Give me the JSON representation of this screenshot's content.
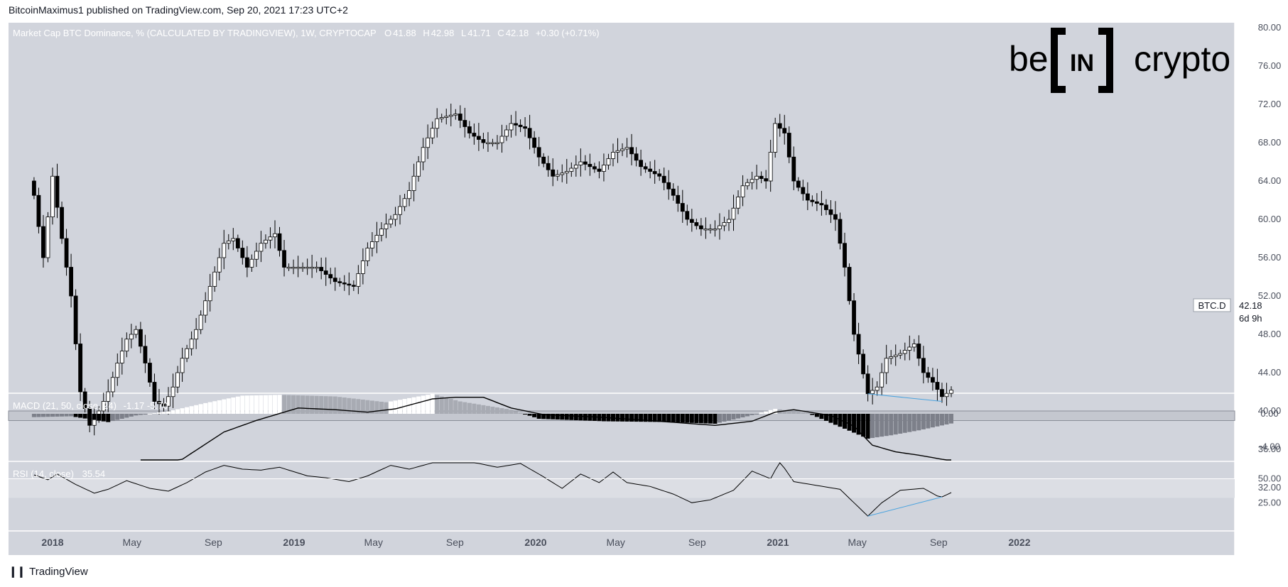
{
  "header": {
    "publish_text": "BitcoinMaximus1 published on TradingView.com, Sep 20, 2021 17:23 UTC+2"
  },
  "footer": {
    "brand": "TradingView"
  },
  "watermark": {
    "text_left": "be",
    "text_mid": "IN",
    "text_right": "crypto"
  },
  "colors": {
    "panel_bg": "#d1d4dc",
    "rsi_band": "#dcdee4",
    "bull": "#ffffff",
    "bear": "#000000",
    "divergence": "#4aa3df"
  },
  "chart_data": [
    {
      "type": "candlestick",
      "title": "Market Cap BTC Dominance, % (CALCULATED BY TRADINGVIEW), 1W, CRYPTOCAP",
      "ohlc_labels": {
        "o_key": "O",
        "o": "41.88",
        "h_key": "H",
        "h": "42.98",
        "l_key": "L",
        "l": "41.71",
        "c_key": "C",
        "c": "42.18",
        "change": "+0.30 (+0.71%)"
      },
      "symbol_label": "BTC.D",
      "last_value": "42.18",
      "countdown": "6d 9h",
      "ylim": [
        30.5,
        80.5
      ],
      "y_ticks": [
        "80.00",
        "76.00",
        "72.00",
        "68.00",
        "64.00",
        "60.00",
        "56.00",
        "52.00",
        "48.00",
        "44.00",
        "40.00",
        "36.00",
        "32.00"
      ],
      "support_zone": [
        39.0,
        40.0
      ],
      "divergence_line": {
        "from": [
          "2021-05-17",
          41.8
        ],
        "to": [
          "2021-09-06",
          41.0
        ]
      },
      "x_labels": [
        "2018",
        "May",
        "Sep",
        "2019",
        "May",
        "Sep",
        "2020",
        "May",
        "Sep",
        "2021",
        "May",
        "Sep",
        "2022"
      ],
      "anchors": [
        [
          "2017-12-04",
          62.5
        ],
        [
          "2017-12-18",
          56.0
        ],
        [
          "2018-01-01",
          64.5
        ],
        [
          "2018-01-15",
          58.0
        ],
        [
          "2018-01-29",
          52.0
        ],
        [
          "2018-02-12",
          42.0
        ],
        [
          "2018-02-26",
          38.5
        ],
        [
          "2018-03-12",
          40.0
        ],
        [
          "2018-03-26",
          42.0
        ],
        [
          "2018-04-09",
          45.0
        ],
        [
          "2018-04-23",
          47.5
        ],
        [
          "2018-05-07",
          48.5
        ],
        [
          "2018-05-21",
          45.0
        ],
        [
          "2018-06-04",
          41.0
        ],
        [
          "2018-06-18",
          40.5
        ],
        [
          "2018-07-02",
          42.5
        ],
        [
          "2018-07-16",
          45.5
        ],
        [
          "2018-08-06",
          48.5
        ],
        [
          "2018-08-27",
          53.0
        ],
        [
          "2018-09-17",
          57.5
        ],
        [
          "2018-10-01",
          58.0
        ],
        [
          "2018-10-22",
          55.0
        ],
        [
          "2018-11-12",
          57.5
        ],
        [
          "2018-12-03",
          58.5
        ],
        [
          "2018-12-17",
          55.0
        ],
        [
          "2019-01-07",
          55.0
        ],
        [
          "2019-02-04",
          55.0
        ],
        [
          "2019-03-04",
          53.5
        ],
        [
          "2019-04-01",
          53.0
        ],
        [
          "2019-04-22",
          57.0
        ],
        [
          "2019-05-13",
          59.0
        ],
        [
          "2019-06-03",
          60.5
        ],
        [
          "2019-06-24",
          63.0
        ],
        [
          "2019-07-15",
          67.5
        ],
        [
          "2019-08-05",
          70.5
        ],
        [
          "2019-09-02",
          71.0
        ],
        [
          "2019-09-23",
          69.0
        ],
        [
          "2019-10-14",
          68.0
        ],
        [
          "2019-11-04",
          68.0
        ],
        [
          "2019-11-25",
          70.0
        ],
        [
          "2019-12-16",
          69.5
        ],
        [
          "2020-01-06",
          66.5
        ],
        [
          "2020-01-27",
          64.5
        ],
        [
          "2020-02-17",
          65.0
        ],
        [
          "2020-03-09",
          66.0
        ],
        [
          "2020-04-06",
          65.0
        ],
        [
          "2020-04-27",
          67.0
        ],
        [
          "2020-05-18",
          67.5
        ],
        [
          "2020-06-08",
          65.5
        ],
        [
          "2020-07-06",
          64.5
        ],
        [
          "2020-07-27",
          62.5
        ],
        [
          "2020-08-17",
          60.0
        ],
        [
          "2020-09-07",
          59.0
        ],
        [
          "2020-09-28",
          59.0
        ],
        [
          "2020-10-19",
          60.0
        ],
        [
          "2020-11-09",
          63.5
        ],
        [
          "2020-11-30",
          64.5
        ],
        [
          "2020-12-14",
          64.0
        ],
        [
          "2020-12-28",
          70.0
        ],
        [
          "2021-01-11",
          69.0
        ],
        [
          "2021-01-25",
          64.0
        ],
        [
          "2021-02-15",
          62.0
        ],
        [
          "2021-03-08",
          61.5
        ],
        [
          "2021-03-29",
          60.0
        ],
        [
          "2021-04-12",
          55.0
        ],
        [
          "2021-04-26",
          48.0
        ],
        [
          "2021-05-17",
          41.8
        ],
        [
          "2021-05-31",
          42.5
        ],
        [
          "2021-06-14",
          45.5
        ],
        [
          "2021-07-05",
          46.0
        ],
        [
          "2021-07-26",
          47.0
        ],
        [
          "2021-08-09",
          44.0
        ],
        [
          "2021-08-23",
          43.0
        ],
        [
          "2021-09-06",
          41.5
        ],
        [
          "2021-09-20",
          42.18
        ]
      ]
    },
    {
      "type": "histogram+line",
      "title": "MACD (21, 50, close, 24)",
      "title_label": "MACD (21, 50, close, 24)",
      "values_label": "-1.17  -5.70",
      "y_ticks": [
        "0.00",
        "-4.00"
      ],
      "ylim": [
        -7.5,
        2.0
      ],
      "histogram_anchors": [
        [
          "2017-12-04",
          -0.4
        ],
        [
          "2018-01-29",
          -0.3
        ],
        [
          "2018-03-26",
          -1.0
        ],
        [
          "2018-05-07",
          -0.2
        ],
        [
          "2018-06-25",
          0.3
        ],
        [
          "2018-08-20",
          1.3
        ],
        [
          "2018-10-15",
          2.2
        ],
        [
          "2018-12-10",
          2.3
        ],
        [
          "2019-03-04",
          2.1
        ],
        [
          "2019-05-20",
          1.4
        ],
        [
          "2019-07-29",
          2.4
        ],
        [
          "2019-09-09",
          1.5
        ],
        [
          "2019-11-25",
          0.5
        ],
        [
          "2020-01-06",
          -0.6
        ],
        [
          "2020-04-13",
          -0.9
        ],
        [
          "2020-07-20",
          -1.0
        ],
        [
          "2020-09-28",
          -1.2
        ],
        [
          "2020-11-16",
          -0.3
        ],
        [
          "2020-12-28",
          0.6
        ],
        [
          "2021-02-15",
          0.1
        ],
        [
          "2021-04-12",
          -1.8
        ],
        [
          "2021-05-17",
          -3.0
        ],
        [
          "2021-06-21",
          -2.6
        ],
        [
          "2021-08-02",
          -2.0
        ],
        [
          "2021-09-20",
          -1.17
        ]
      ],
      "line_anchors": [
        [
          "2018-05-14",
          -7.5
        ],
        [
          "2018-07-16",
          -5.5
        ],
        [
          "2018-09-17",
          -2.2
        ],
        [
          "2018-11-05",
          -0.8
        ],
        [
          "2019-01-07",
          0.7
        ],
        [
          "2019-03-04",
          0.5
        ],
        [
          "2019-04-22",
          0.2
        ],
        [
          "2019-06-03",
          0.6
        ],
        [
          "2019-07-29",
          1.8
        ],
        [
          "2019-09-02",
          2.0
        ],
        [
          "2019-10-14",
          2.0
        ],
        [
          "2019-11-25",
          0.7
        ],
        [
          "2020-01-13",
          -0.1
        ],
        [
          "2020-04-06",
          -0.4
        ],
        [
          "2020-07-06",
          -0.9
        ],
        [
          "2020-09-28",
          -1.4
        ],
        [
          "2020-11-23",
          -0.9
        ],
        [
          "2020-12-28",
          0.2
        ],
        [
          "2021-01-25",
          0.5
        ],
        [
          "2021-03-22",
          -0.2
        ],
        [
          "2021-04-26",
          -1.5
        ],
        [
          "2021-05-24",
          -3.8
        ],
        [
          "2021-06-28",
          -4.6
        ],
        [
          "2021-08-02",
          -5.0
        ],
        [
          "2021-09-20",
          -5.7
        ]
      ]
    },
    {
      "type": "line",
      "title": "RSI (14, close)",
      "title_label": "RSI (14, close)",
      "value_label": "35.54",
      "y_ticks": [
        "50.00",
        "25.00"
      ],
      "ylim": [
        0,
        70
      ],
      "band": [
        30,
        50
      ],
      "divergence_line": {
        "from": [
          "2021-05-17",
          11.0
        ],
        "to": [
          "2021-09-06",
          31.0
        ]
      },
      "line_anchors": [
        [
          "2017-12-04",
          54.0
        ],
        [
          "2017-12-25",
          49.0
        ],
        [
          "2018-01-08",
          55.0
        ],
        [
          "2018-02-05",
          44.0
        ],
        [
          "2018-03-05",
          35.0
        ],
        [
          "2018-03-26",
          39.0
        ],
        [
          "2018-04-23",
          48.0
        ],
        [
          "2018-05-28",
          40.0
        ],
        [
          "2018-06-25",
          37.0
        ],
        [
          "2018-07-23",
          46.0
        ],
        [
          "2018-08-20",
          57.0
        ],
        [
          "2018-09-17",
          64.0
        ],
        [
          "2018-10-15",
          60.0
        ],
        [
          "2018-11-12",
          59.0
        ],
        [
          "2018-12-10",
          62.0
        ],
        [
          "2019-01-21",
          53.0
        ],
        [
          "2019-02-18",
          51.0
        ],
        [
          "2019-03-25",
          47.0
        ],
        [
          "2019-04-22",
          53.0
        ],
        [
          "2019-05-27",
          64.0
        ],
        [
          "2019-06-24",
          60.0
        ],
        [
          "2019-08-05",
          68.0
        ],
        [
          "2019-09-02",
          72.0
        ],
        [
          "2019-10-07",
          66.0
        ],
        [
          "2019-11-04",
          62.0
        ],
        [
          "2019-12-09",
          66.0
        ],
        [
          "2020-01-13",
          52.0
        ],
        [
          "2020-02-10",
          40.0
        ],
        [
          "2020-03-09",
          55.0
        ],
        [
          "2020-04-06",
          46.0
        ],
        [
          "2020-04-27",
          57.0
        ],
        [
          "2020-05-18",
          46.0
        ],
        [
          "2020-06-22",
          42.0
        ],
        [
          "2020-07-27",
          34.0
        ],
        [
          "2020-08-24",
          25.0
        ],
        [
          "2020-09-21",
          28.0
        ],
        [
          "2020-10-26",
          38.0
        ],
        [
          "2020-11-23",
          58.0
        ],
        [
          "2020-12-21",
          50.0
        ],
        [
          "2021-01-04",
          68.0
        ],
        [
          "2021-01-25",
          47.0
        ],
        [
          "2021-03-01",
          43.0
        ],
        [
          "2021-04-05",
          39.0
        ],
        [
          "2021-04-26",
          25.0
        ],
        [
          "2021-05-17",
          11.0
        ],
        [
          "2021-06-07",
          25.0
        ],
        [
          "2021-07-05",
          38.0
        ],
        [
          "2021-08-09",
          40.0
        ],
        [
          "2021-08-30",
          32.0
        ],
        [
          "2021-09-06",
          31.0
        ],
        [
          "2021-09-20",
          35.54
        ]
      ]
    }
  ]
}
